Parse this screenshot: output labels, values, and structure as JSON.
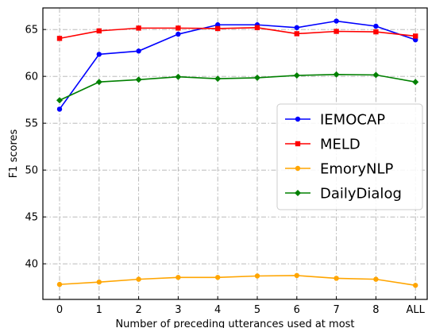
{
  "chart_data": {
    "type": "line",
    "title": "",
    "xlabel": "Number of preceding utterances used at most",
    "ylabel": "F1 scores",
    "categories": [
      "0",
      "1",
      "2",
      "3",
      "4",
      "5",
      "6",
      "7",
      "8",
      "ALL"
    ],
    "ylim": [
      36.2,
      67.3
    ],
    "yticks": [
      40,
      45,
      50,
      55,
      60,
      65
    ],
    "grid": true,
    "legend_position": "center-right",
    "series": [
      {
        "name": "IEMOCAP",
        "color": "#0000ff",
        "marker": "circle",
        "values": [
          56.5,
          62.35,
          62.7,
          64.5,
          65.5,
          65.5,
          65.2,
          65.9,
          65.35,
          63.9
        ]
      },
      {
        "name": "MELD",
        "color": "#ff0000",
        "marker": "square",
        "values": [
          64.05,
          64.85,
          65.15,
          65.15,
          65.1,
          65.2,
          64.55,
          64.8,
          64.75,
          64.3
        ]
      },
      {
        "name": "EmoryNLP",
        "color": "#ffa500",
        "marker": "circle",
        "values": [
          37.8,
          38.05,
          38.35,
          38.55,
          38.55,
          38.7,
          38.75,
          38.45,
          38.35,
          37.7
        ]
      },
      {
        "name": "DailyDialog",
        "color": "#008000",
        "marker": "diamond",
        "values": [
          57.45,
          59.4,
          59.65,
          59.95,
          59.75,
          59.85,
          60.1,
          60.2,
          60.15,
          59.4
        ]
      }
    ]
  }
}
